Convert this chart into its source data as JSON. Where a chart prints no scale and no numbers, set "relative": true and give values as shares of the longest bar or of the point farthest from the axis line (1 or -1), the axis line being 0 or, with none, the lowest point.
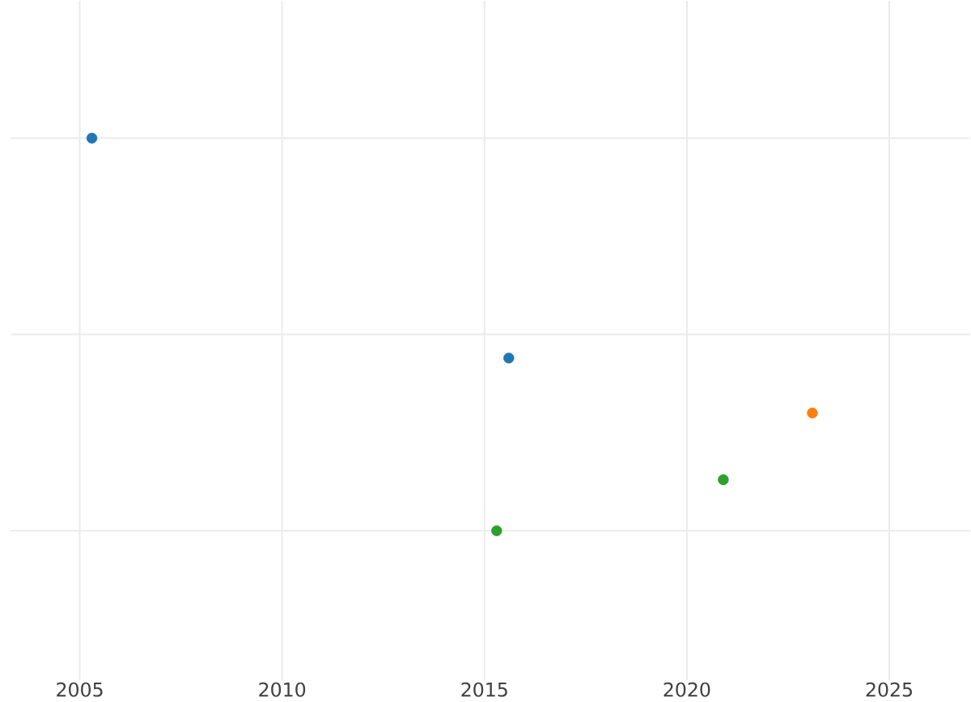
{
  "chart_data": {
    "type": "scatter",
    "relative": true,
    "xlim": [
      2003.3,
      2027
    ],
    "xticks": [
      2005,
      2010,
      2015,
      2020,
      2025
    ],
    "grid": true,
    "marker": "circle",
    "series": [
      {
        "color": "#1f77b4",
        "x": [
          2005.3,
          2015.6
        ],
        "values": [
          1,
          0.44
        ]
      },
      {
        "color": "#ff7f0e",
        "x": [
          2023.1
        ],
        "values": [
          0.3
        ]
      },
      {
        "color": "#2ca02c",
        "x": [
          2020.9,
          2015.3
        ],
        "values": [
          0.13,
          0
        ]
      }
    ]
  }
}
